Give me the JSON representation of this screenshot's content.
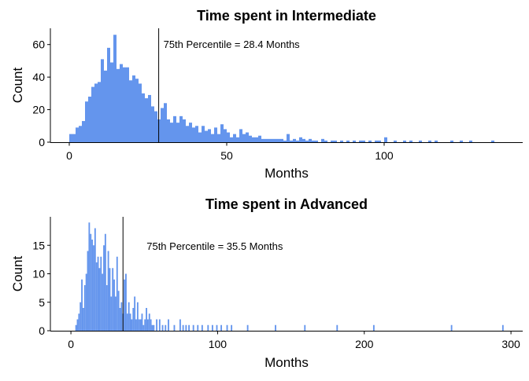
{
  "chart_data": [
    {
      "type": "bar",
      "title": "Time spent in Intermediate",
      "xlabel": "Months",
      "ylabel": "Count",
      "xlim": [
        -6,
        144
      ],
      "ylim": [
        0,
        70
      ],
      "xticks": [
        0,
        50,
        100
      ],
      "yticks": [
        0,
        20,
        40,
        60
      ],
      "bin_width": 1,
      "bar_color": "#6495ED",
      "bins": [
        [
          0,
          5
        ],
        [
          1,
          5
        ],
        [
          2,
          9
        ],
        [
          3,
          10
        ],
        [
          4,
          13
        ],
        [
          5,
          25
        ],
        [
          6,
          28
        ],
        [
          7,
          34
        ],
        [
          8,
          36
        ],
        [
          9,
          37
        ],
        [
          10,
          51
        ],
        [
          11,
          44
        ],
        [
          12,
          58
        ],
        [
          13,
          49
        ],
        [
          14,
          66
        ],
        [
          15,
          45
        ],
        [
          16,
          48
        ],
        [
          17,
          46
        ],
        [
          18,
          46
        ],
        [
          19,
          38
        ],
        [
          20,
          41
        ],
        [
          21,
          39
        ],
        [
          22,
          36
        ],
        [
          23,
          30
        ],
        [
          24,
          27
        ],
        [
          25,
          29
        ],
        [
          26,
          22
        ],
        [
          27,
          19
        ],
        [
          28,
          14
        ],
        [
          29,
          21
        ],
        [
          30,
          24
        ],
        [
          31,
          14
        ],
        [
          32,
          12
        ],
        [
          33,
          16
        ],
        [
          34,
          12
        ],
        [
          35,
          16
        ],
        [
          36,
          14
        ],
        [
          37,
          10
        ],
        [
          38,
          12
        ],
        [
          39,
          9
        ],
        [
          40,
          10
        ],
        [
          41,
          6
        ],
        [
          42,
          10
        ],
        [
          43,
          7
        ],
        [
          44,
          8
        ],
        [
          45,
          5
        ],
        [
          46,
          9
        ],
        [
          47,
          5
        ],
        [
          48,
          11
        ],
        [
          49,
          8
        ],
        [
          50,
          6
        ],
        [
          51,
          3
        ],
        [
          52,
          5
        ],
        [
          53,
          3
        ],
        [
          54,
          8
        ],
        [
          55,
          5
        ],
        [
          56,
          6
        ],
        [
          57,
          4
        ],
        [
          58,
          3
        ],
        [
          59,
          3
        ],
        [
          60,
          4
        ],
        [
          61,
          2
        ],
        [
          62,
          2
        ],
        [
          63,
          2
        ],
        [
          64,
          2
        ],
        [
          65,
          2
        ],
        [
          66,
          2
        ],
        [
          67,
          2
        ],
        [
          68,
          1
        ],
        [
          69,
          5
        ],
        [
          70,
          1
        ],
        [
          71,
          2
        ],
        [
          72,
          1
        ],
        [
          73,
          3
        ],
        [
          74,
          2
        ],
        [
          75,
          1
        ],
        [
          76,
          2
        ],
        [
          77,
          1
        ],
        [
          78,
          1
        ],
        [
          80,
          2
        ],
        [
          81,
          1
        ],
        [
          83,
          1
        ],
        [
          84,
          1
        ],
        [
          86,
          1
        ],
        [
          88,
          1
        ],
        [
          90,
          1
        ],
        [
          92,
          1
        ],
        [
          93,
          1
        ],
        [
          95,
          1
        ],
        [
          97,
          1
        ],
        [
          98,
          1
        ],
        [
          100,
          3
        ],
        [
          103,
          1
        ],
        [
          106,
          1
        ],
        [
          108,
          1
        ],
        [
          111,
          1
        ],
        [
          114,
          1
        ],
        [
          116,
          1
        ],
        [
          121,
          1
        ],
        [
          124,
          1
        ],
        [
          127,
          1
        ],
        [
          134,
          1
        ]
      ],
      "vline": {
        "x": 28.4,
        "label": "75th Percentile =  28.4 Months"
      }
    },
    {
      "type": "bar",
      "title": "Time spent in Advanced",
      "xlabel": "Months",
      "ylabel": "Count",
      "xlim": [
        -14,
        308
      ],
      "ylim": [
        0,
        20
      ],
      "xticks": [
        0,
        100,
        200,
        300
      ],
      "yticks": [
        0,
        5,
        10,
        15
      ],
      "bin_width": 1,
      "bar_color": "#6495ED",
      "bins": [
        [
          3,
          1
        ],
        [
          4,
          2
        ],
        [
          5,
          3
        ],
        [
          6,
          5
        ],
        [
          7,
          9
        ],
        [
          8,
          4
        ],
        [
          9,
          8
        ],
        [
          10,
          10
        ],
        [
          11,
          14
        ],
        [
          12,
          19
        ],
        [
          13,
          17
        ],
        [
          14,
          16
        ],
        [
          15,
          15
        ],
        [
          16,
          18
        ],
        [
          17,
          12
        ],
        [
          18,
          13
        ],
        [
          19,
          11
        ],
        [
          20,
          13
        ],
        [
          21,
          10
        ],
        [
          22,
          15
        ],
        [
          23,
          17
        ],
        [
          24,
          8
        ],
        [
          25,
          14
        ],
        [
          26,
          11
        ],
        [
          27,
          6
        ],
        [
          28,
          11
        ],
        [
          29,
          9
        ],
        [
          30,
          6
        ],
        [
          31,
          13
        ],
        [
          32,
          7
        ],
        [
          33,
          4
        ],
        [
          34,
          5
        ],
        [
          35,
          3
        ],
        [
          36,
          9
        ],
        [
          37,
          10
        ],
        [
          38,
          3
        ],
        [
          39,
          5
        ],
        [
          40,
          3
        ],
        [
          41,
          2
        ],
        [
          42,
          4
        ],
        [
          43,
          6
        ],
        [
          44,
          2
        ],
        [
          45,
          5
        ],
        [
          46,
          2
        ],
        [
          47,
          2
        ],
        [
          48,
          3
        ],
        [
          49,
          1
        ],
        [
          50,
          2
        ],
        [
          51,
          4
        ],
        [
          52,
          2
        ],
        [
          53,
          3
        ],
        [
          54,
          2
        ],
        [
          55,
          1
        ],
        [
          56,
          1
        ],
        [
          58,
          2
        ],
        [
          60,
          2
        ],
        [
          62,
          1
        ],
        [
          64,
          1
        ],
        [
          66,
          2
        ],
        [
          70,
          1
        ],
        [
          74,
          2
        ],
        [
          76,
          1
        ],
        [
          78,
          1
        ],
        [
          80,
          1
        ],
        [
          83,
          1
        ],
        [
          86,
          1
        ],
        [
          89,
          1
        ],
        [
          93,
          1
        ],
        [
          96,
          1
        ],
        [
          99,
          1
        ],
        [
          102,
          1
        ],
        [
          106,
          1
        ],
        [
          109,
          1
        ],
        [
          120,
          1
        ],
        [
          139,
          1
        ],
        [
          159,
          1
        ],
        [
          181,
          1
        ],
        [
          206,
          1
        ],
        [
          259,
          1
        ],
        [
          294,
          1
        ]
      ],
      "vline": {
        "x": 35.5,
        "label": "75th Percentile =  35.5 Months"
      }
    }
  ]
}
